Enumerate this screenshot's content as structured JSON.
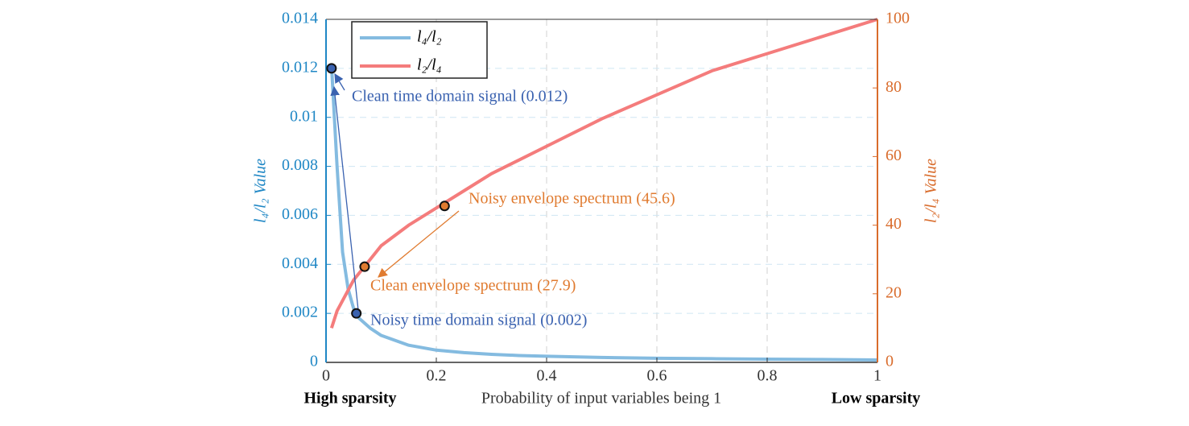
{
  "chart_data": {
    "type": "line",
    "x_label": "Probability of input variables being 1",
    "x_left_note": "High sparsity",
    "x_right_note": "Low sparsity",
    "y_label": "l₄/l₂ Value",
    "y2_label": "l₂/l₄ Value",
    "x": [
      0.01,
      0.02,
      0.03,
      0.04,
      0.05,
      0.06,
      0.08,
      0.1,
      0.15,
      0.2,
      0.25,
      0.3,
      0.35,
      0.4,
      0.5,
      0.6,
      0.7,
      0.8,
      0.9,
      1.0
    ],
    "series": [
      {
        "name": "l₄/l₂",
        "color": "#84bbe0",
        "axis": "y",
        "values": [
          0.0121,
          0.008,
          0.0045,
          0.003,
          0.0022,
          0.0018,
          0.0014,
          0.0011,
          0.0007,
          0.0005,
          0.0004,
          0.00033,
          0.00028,
          0.00025,
          0.0002,
          0.00017,
          0.00015,
          0.00013,
          0.00012,
          0.0001
        ]
      },
      {
        "name": "l₂/l₄",
        "color": "#f47c7c",
        "axis": "y2",
        "values": [
          10,
          15,
          18,
          21,
          24,
          26,
          30,
          34,
          40,
          45,
          50,
          55,
          59,
          63,
          71,
          78,
          85,
          90,
          95,
          100
        ]
      }
    ],
    "annotations": [
      {
        "text": "Clean time domain signal (0.012)",
        "x": 0.01,
        "y": 0.012,
        "axis": "y",
        "color": "#3a62b0"
      },
      {
        "text": "Noisy time domain signal (0.002)",
        "x": 0.055,
        "y": 0.002,
        "axis": "y",
        "color": "#3a62b0"
      },
      {
        "text": "Clean envelope spectrum (27.9)",
        "x": 0.07,
        "y": 27.9,
        "axis": "y2",
        "color": "#e07b30"
      },
      {
        "text": "Noisy envelope spectrum (45.6)",
        "x": 0.215,
        "y": 45.6,
        "axis": "y2",
        "color": "#e07b30"
      }
    ],
    "xlim": [
      0,
      1
    ],
    "xticks": [
      0,
      0.2,
      0.4,
      0.6,
      0.8,
      1
    ],
    "ylim": [
      0,
      0.014
    ],
    "yticks": [
      0,
      0.002,
      0.004,
      0.006,
      0.008,
      0.01,
      0.012,
      0.014
    ],
    "y2lim": [
      0,
      100
    ],
    "y2ticks": [
      0,
      20,
      40,
      60,
      80,
      100
    ],
    "y_color": "#1f87c5",
    "y2_color": "#d96c2c",
    "grid": true,
    "legend": "upper left"
  }
}
